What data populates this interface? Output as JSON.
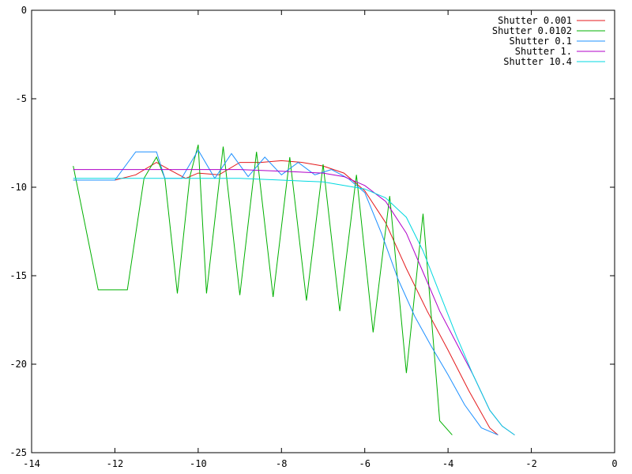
{
  "chart_data": {
    "type": "line",
    "title": "",
    "xlabel": "",
    "ylabel": "",
    "xlim": [
      -14,
      0
    ],
    "ylim": [
      -25,
      0
    ],
    "xticks": [
      -14,
      -12,
      -10,
      -8,
      -6,
      -4,
      -2,
      0
    ],
    "yticks": [
      -25,
      -20,
      -15,
      -10,
      -5,
      0
    ],
    "xtick_labels": [
      "-14",
      "-12",
      "-10",
      "-8",
      "-6",
      "-4",
      "-2",
      "0"
    ],
    "ytick_labels": [
      "-25",
      "-20",
      "-15",
      "-10",
      "-5",
      "0"
    ],
    "grid": false,
    "legend_position": "top-right",
    "series": [
      {
        "name": "Shutter 0.001",
        "color": "#e41a1c",
        "x": [
          -13.0,
          -12.0,
          -11.5,
          -11.0,
          -10.7,
          -10.3,
          -10.0,
          -9.5,
          -9.0,
          -8.5,
          -8.0,
          -7.5,
          -7.0,
          -6.5,
          -6.0,
          -5.5,
          -5.0,
          -4.5,
          -4.0,
          -3.5,
          -3.0,
          -2.8
        ],
        "y": [
          -9.6,
          -9.6,
          -9.3,
          -8.6,
          -9.0,
          -9.5,
          -9.2,
          -9.3,
          -8.6,
          -8.6,
          -8.5,
          -8.6,
          -8.8,
          -9.2,
          -10.2,
          -12.0,
          -14.6,
          -17.0,
          -19.2,
          -21.5,
          -23.6,
          -24.0
        ]
      },
      {
        "name": "Shutter 0.0102",
        "color": "#00b000",
        "x": [
          -13.0,
          -12.4,
          -11.7,
          -11.3,
          -11.0,
          -10.8,
          -10.5,
          -10.2,
          -10.0,
          -9.8,
          -9.4,
          -9.0,
          -8.6,
          -8.2,
          -7.8,
          -7.4,
          -7.0,
          -6.6,
          -6.2,
          -5.8,
          -5.4,
          -5.0,
          -4.6,
          -4.2,
          -3.9
        ],
        "y": [
          -8.8,
          -15.8,
          -15.8,
          -9.5,
          -8.3,
          -9.5,
          -16.0,
          -9.4,
          -7.6,
          -16.0,
          -7.7,
          -16.1,
          -8.0,
          -16.2,
          -8.3,
          -16.4,
          -8.7,
          -17.0,
          -9.3,
          -18.2,
          -10.5,
          -20.5,
          -11.5,
          -23.2,
          -24.0
        ]
      },
      {
        "name": "Shutter 0.1",
        "color": "#1e90ff",
        "x": [
          -13.0,
          -12.0,
          -11.5,
          -11.0,
          -10.8,
          -10.4,
          -10.0,
          -9.6,
          -9.2,
          -8.8,
          -8.4,
          -8.0,
          -7.6,
          -7.2,
          -6.8,
          -6.4,
          -6.0,
          -5.6,
          -5.2,
          -4.8,
          -4.4,
          -4.0,
          -3.6,
          -3.2,
          -2.8
        ],
        "y": [
          -9.6,
          -9.6,
          -8.0,
          -8.0,
          -9.5,
          -9.5,
          -7.9,
          -9.5,
          -8.1,
          -9.4,
          -8.3,
          -9.3,
          -8.6,
          -9.3,
          -9.0,
          -9.5,
          -10.3,
          -12.6,
          -15.2,
          -17.3,
          -19.0,
          -20.6,
          -22.3,
          -23.6,
          -24.0
        ]
      },
      {
        "name": "Shutter 1.",
        "color": "#b000c8",
        "x": [
          -13.0,
          -12.0,
          -11.0,
          -10.0,
          -9.0,
          -8.0,
          -7.0,
          -6.5,
          -6.0,
          -5.5,
          -5.0,
          -4.6,
          -4.2,
          -3.8,
          -3.4,
          -3.0,
          -2.7,
          -2.4
        ],
        "y": [
          -9.0,
          -9.0,
          -9.0,
          -9.0,
          -9.0,
          -9.1,
          -9.2,
          -9.4,
          -9.9,
          -10.8,
          -12.6,
          -14.8,
          -17.0,
          -18.8,
          -20.6,
          -22.6,
          -23.5,
          -24.0
        ]
      },
      {
        "name": "Shutter 10.4",
        "color": "#00d8e0",
        "x": [
          -13.0,
          -12.0,
          -11.0,
          -10.0,
          -9.0,
          -8.0,
          -7.0,
          -6.0,
          -5.5,
          -5.0,
          -4.6,
          -4.2,
          -3.8,
          -3.4,
          -3.0,
          -2.7,
          -2.4
        ],
        "y": [
          -9.5,
          -9.5,
          -9.5,
          -9.5,
          -9.5,
          -9.6,
          -9.7,
          -10.1,
          -10.6,
          -11.7,
          -13.6,
          -16.0,
          -18.4,
          -20.6,
          -22.6,
          -23.5,
          -24.0
        ]
      }
    ]
  }
}
